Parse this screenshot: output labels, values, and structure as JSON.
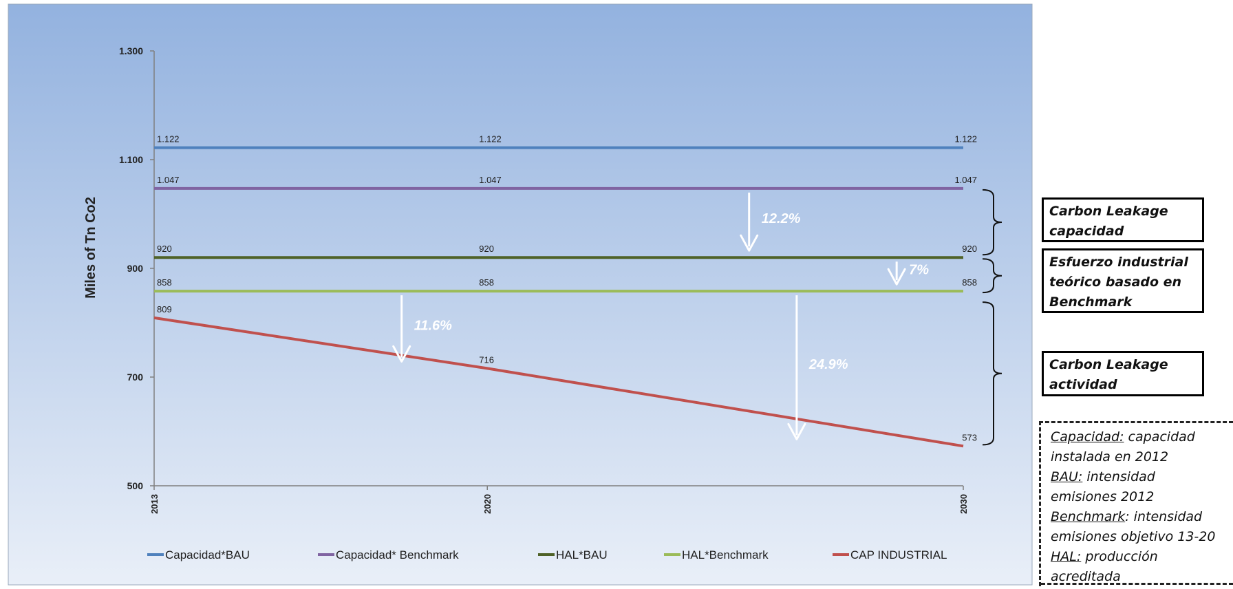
{
  "chart_data": {
    "type": "line",
    "x": [
      "2013",
      "2020",
      "2030"
    ],
    "ylabel": "Miles of Tn Co2",
    "ylim": [
      500,
      1300
    ],
    "yticks": [
      "500",
      "700",
      "900",
      "1.100",
      "1.300"
    ],
    "grid": false,
    "legend_position": "bottom",
    "series": [
      {
        "name": "Capacidad*BAU",
        "color": "#4f81bd",
        "values": [
          1122,
          1122,
          1122
        ],
        "labels": [
          "1.122",
          "1.122",
          "1.122"
        ]
      },
      {
        "name": "Capacidad* Benchmark",
        "color": "#8064a2",
        "values": [
          1047,
          1047,
          1047
        ],
        "labels": [
          "1.047",
          "1.047",
          "1.047"
        ]
      },
      {
        "name": "HAL*BAU",
        "color": "#4f6228",
        "values": [
          920,
          920,
          920
        ],
        "labels": [
          "920",
          "920",
          "920"
        ]
      },
      {
        "name": "HAL*Benchmark",
        "color": "#9bbb59",
        "values": [
          858,
          858,
          858
        ],
        "labels": [
          "858",
          "858",
          "858"
        ]
      },
      {
        "name": "CAP INDUSTRIAL",
        "color": "#c0504d",
        "values": [
          809,
          716,
          573
        ],
        "labels": [
          "809",
          "716",
          "573"
        ]
      }
    ],
    "annotations": [
      {
        "text": "12.2%",
        "x_year": 2025.5,
        "from": 1047,
        "to": 920
      },
      {
        "text": "7%",
        "x_year": 2028.6,
        "from": 920,
        "to": 858
      },
      {
        "text": "11.6%",
        "x_year": 2018.2,
        "from": 858,
        "to": 716
      },
      {
        "text": "24.9%",
        "x_year": 2026.5,
        "from": 858,
        "to": 573
      }
    ]
  },
  "side_boxes": {
    "carbon_leakage_capacidad": [
      "Carbon Leakage",
      "capacidad"
    ],
    "esfuerzo_industrial": [
      "Esfuerzo industrial",
      "teórico basado en",
      "Benchmark"
    ],
    "carbon_leakage_actividad": [
      "Carbon Leakage",
      "actividad"
    ]
  },
  "definitions": [
    {
      "term": "Capacidad:",
      "text": " capacidad"
    },
    {
      "term": "",
      "text": "instalada en 2012"
    },
    {
      "term": "BAU:",
      "text": " intensidad"
    },
    {
      "term": "",
      "text": "emisiones 2012"
    },
    {
      "term": "Benchmark",
      "text": ": intensidad"
    },
    {
      "term": "",
      "text": "emisiones objetivo 13-20"
    },
    {
      "term": "HAL:",
      "text": " producción"
    },
    {
      "term": "",
      "text": "acreditada"
    }
  ]
}
